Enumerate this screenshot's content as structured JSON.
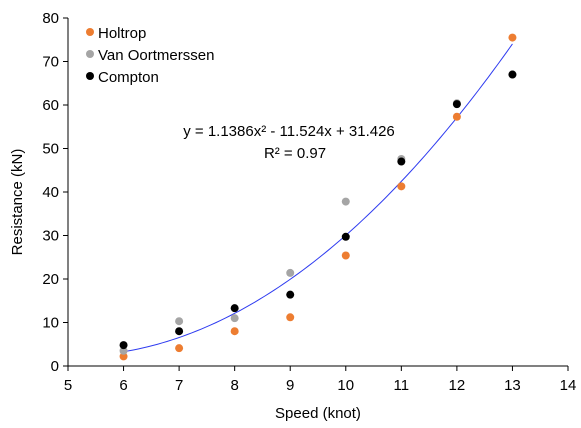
{
  "chart_data": {
    "type": "scatter",
    "xlabel": "Speed (knot)",
    "ylabel": "Resistance (kN)",
    "xlim": [
      5,
      14
    ],
    "ylim": [
      0,
      80
    ],
    "xticks": [
      "5",
      "6",
      "7",
      "8",
      "9",
      "10",
      "11",
      "12",
      "13",
      "14"
    ],
    "yticks": [
      "0",
      "10",
      "20",
      "30",
      "40",
      "50",
      "60",
      "70",
      "80"
    ],
    "grid": false,
    "legend_position": "top-left",
    "series": [
      {
        "name": "Holtrop",
        "color": "#ED7D31",
        "x": [
          6,
          7,
          8,
          9,
          10,
          11,
          12,
          13
        ],
        "y": [
          2.2,
          4.1,
          8.0,
          11.2,
          25.4,
          41.3,
          57.3,
          75.5
        ]
      },
      {
        "name": "Van Oortmerssen",
        "color": "#A5A5A5",
        "x": [
          6,
          7,
          8,
          9,
          10,
          11,
          12,
          13
        ],
        "y": [
          3.5,
          10.3,
          11.0,
          21.4,
          37.8,
          47.6,
          60.4,
          67.0
        ]
      },
      {
        "name": "Compton",
        "color": "#000000",
        "x": [
          6,
          7,
          8,
          9,
          10,
          11,
          12,
          13
        ],
        "y": [
          4.8,
          8.0,
          13.3,
          16.4,
          29.7,
          47.0,
          60.2,
          67.0
        ]
      }
    ],
    "trendline": {
      "type": "polynomial",
      "color": "#2E3BF0",
      "coefficients": [
        1.1386,
        -11.524,
        31.426
      ],
      "x_range": [
        6,
        13
      ]
    },
    "annotations": {
      "equation": "y = 1.1386x² - 11.524x + 31.426",
      "r_squared": "R² = 0.97"
    }
  }
}
